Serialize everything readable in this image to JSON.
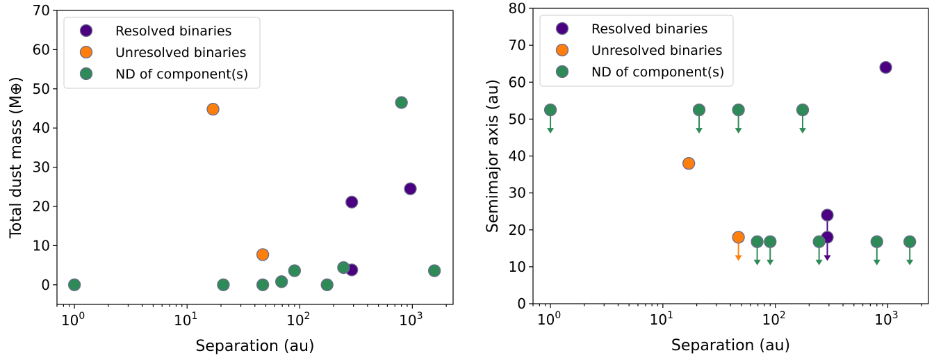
{
  "colors": {
    "resolved": "#4b0082",
    "unresolved": "#ff7f0e",
    "nd": "#2e8b57",
    "marker_edge": "#6b6b8a"
  },
  "chart_data": [
    {
      "type": "scatter",
      "xlabel": "Separation (au)",
      "ylabel": "Total dust mass (M⊕)",
      "xscale": "log",
      "xlim": [
        0.7,
        2300
      ],
      "ylim": [
        -5,
        70
      ],
      "xticks": [
        {
          "value": 1,
          "base": "10",
          "exp": "0"
        },
        {
          "value": 10,
          "base": "10",
          "exp": "1"
        },
        {
          "value": 100,
          "base": "10",
          "exp": "2"
        },
        {
          "value": 1000,
          "base": "10",
          "exp": "3"
        }
      ],
      "yticks": [
        0,
        10,
        20,
        30,
        40,
        50,
        60,
        70
      ],
      "legend": {
        "position": "upper-left",
        "entries": [
          "Resolved binaries",
          "Unresolved binaries",
          "ND of component(s)"
        ]
      },
      "series": [
        {
          "name": "Resolved binaries",
          "color_key": "resolved",
          "points": [
            {
              "x": 290,
              "y": 21.1
            },
            {
              "x": 290,
              "y": 3.8
            },
            {
              "x": 960,
              "y": 24.5
            }
          ]
        },
        {
          "name": "Unresolved binaries",
          "color_key": "unresolved",
          "points": [
            {
              "x": 17,
              "y": 44.8
            },
            {
              "x": 47,
              "y": 7.7
            }
          ]
        },
        {
          "name": "ND of component(s)",
          "color_key": "nd",
          "points": [
            {
              "x": 1,
              "y": 0
            },
            {
              "x": 21,
              "y": 0
            },
            {
              "x": 47,
              "y": 0
            },
            {
              "x": 69,
              "y": 0.8
            },
            {
              "x": 90,
              "y": 3.6
            },
            {
              "x": 175,
              "y": 0
            },
            {
              "x": 245,
              "y": 4.4
            },
            {
              "x": 800,
              "y": 46.5
            },
            {
              "x": 1570,
              "y": 3.6
            }
          ]
        }
      ]
    },
    {
      "type": "scatter",
      "xlabel": "Separation (au)",
      "ylabel": "Semimajor axis (au)",
      "xscale": "log",
      "xlim": [
        0.7,
        2300
      ],
      "ylim": [
        0,
        80
      ],
      "xticks": [
        {
          "value": 1,
          "base": "10",
          "exp": "0"
        },
        {
          "value": 10,
          "base": "10",
          "exp": "1"
        },
        {
          "value": 100,
          "base": "10",
          "exp": "2"
        },
        {
          "value": 1000,
          "base": "10",
          "exp": "3"
        }
      ],
      "yticks": [
        0,
        10,
        20,
        30,
        40,
        50,
        60,
        70,
        80
      ],
      "legend": {
        "position": "upper-left",
        "entries": [
          "Resolved binaries",
          "Unresolved binaries",
          "ND of component(s)"
        ]
      },
      "series": [
        {
          "name": "Resolved binaries",
          "color_key": "resolved",
          "points": [
            {
              "x": 290,
              "y": 24.0,
              "upper_limit": true
            },
            {
              "x": 290,
              "y": 18.0,
              "upper_limit": true
            },
            {
              "x": 960,
              "y": 64.0
            }
          ]
        },
        {
          "name": "Unresolved binaries",
          "color_key": "unresolved",
          "points": [
            {
              "x": 17,
              "y": 38.0
            },
            {
              "x": 47,
              "y": 18.0,
              "upper_limit": true
            }
          ]
        },
        {
          "name": "ND of component(s)",
          "color_key": "nd",
          "points": [
            {
              "x": 1,
              "y": 52.5,
              "upper_limit": true
            },
            {
              "x": 21,
              "y": 52.5,
              "upper_limit": true
            },
            {
              "x": 47,
              "y": 52.5,
              "upper_limit": true
            },
            {
              "x": 175,
              "y": 52.5,
              "upper_limit": true
            },
            {
              "x": 69,
              "y": 16.8,
              "upper_limit": true
            },
            {
              "x": 90,
              "y": 16.8,
              "upper_limit": true
            },
            {
              "x": 245,
              "y": 16.8,
              "upper_limit": true
            },
            {
              "x": 800,
              "y": 16.8,
              "upper_limit": true
            },
            {
              "x": 1570,
              "y": 16.8,
              "upper_limit": true
            }
          ]
        }
      ]
    }
  ]
}
